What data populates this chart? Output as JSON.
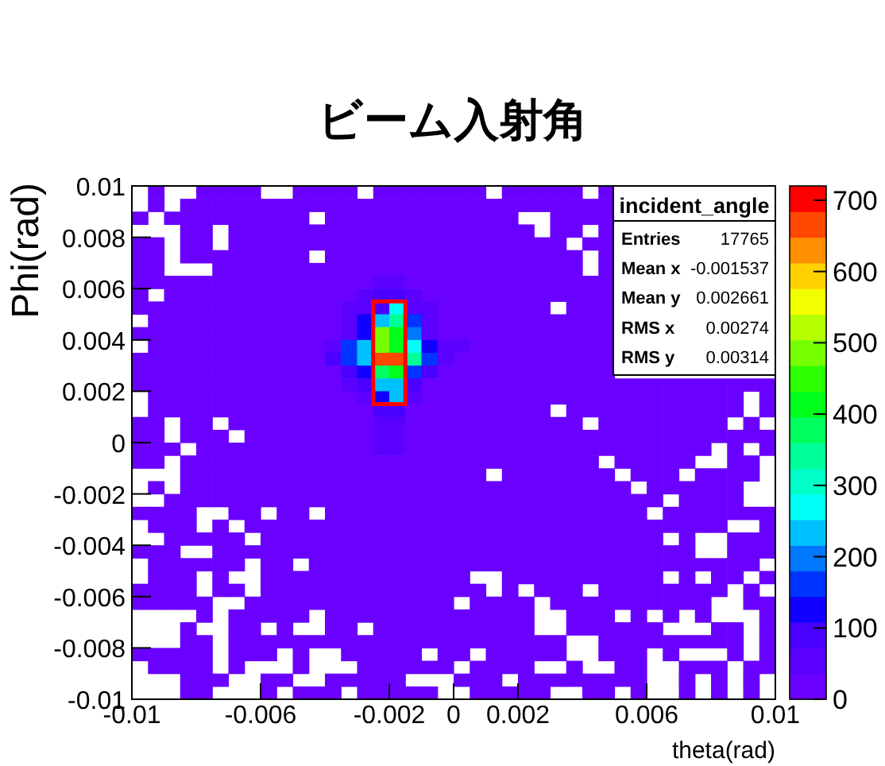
{
  "chart_data": {
    "type": "heatmap",
    "title": "ビーム入射角",
    "xlabel": "theta(rad)",
    "ylabel": "Phi(rad)",
    "annotations": [
      "incident_angle",
      "Entries",
      "17765",
      "Mean x",
      "-0.001537",
      "Mean y",
      "0.002661",
      "RMS x",
      "0.00274",
      "RMS y",
      "0.00314"
    ],
    "xlim": [
      -0.01,
      0.01
    ],
    "ylim": [
      -0.01,
      0.01
    ],
    "xticks": [
      -0.01,
      -0.006,
      -0.002,
      0,
      0.002,
      0.006,
      0.01
    ],
    "yticks": [
      -0.01,
      -0.008,
      -0.006,
      -0.004,
      -0.002,
      0,
      0.002,
      0.004,
      0.006,
      0.008,
      0.01
    ],
    "clim": [
      0,
      720
    ],
    "cticks": [
      0,
      100,
      200,
      300,
      400,
      500,
      600,
      700
    ],
    "cells": [
      [
        null,
        10,
        null,
        null,
        10,
        10,
        10,
        10,
        null,
        null,
        10,
        10,
        10,
        10,
        null,
        10,
        10,
        10,
        10,
        10,
        10,
        10,
        null,
        10,
        10,
        10,
        10,
        10,
        null,
        10,
        null,
        null,
        null,
        null,
        null,
        null,
        null,
        null,
        null,
        null
      ],
      [
        null,
        10,
        null,
        10,
        10,
        10,
        10,
        10,
        10,
        10,
        10,
        10,
        10,
        10,
        10,
        10,
        10,
        10,
        10,
        10,
        10,
        10,
        10,
        10,
        10,
        10,
        10,
        10,
        10,
        10,
        null,
        null,
        null,
        null,
        null,
        null,
        null,
        null,
        null,
        null
      ],
      [
        10,
        null,
        10,
        10,
        10,
        10,
        10,
        10,
        10,
        10,
        10,
        null,
        10,
        10,
        10,
        10,
        10,
        10,
        10,
        10,
        10,
        10,
        10,
        10,
        null,
        null,
        10,
        10,
        10,
        10,
        null,
        null,
        null,
        null,
        null,
        null,
        null,
        null,
        null,
        null
      ],
      [
        null,
        null,
        null,
        10,
        10,
        null,
        10,
        10,
        10,
        10,
        10,
        10,
        10,
        10,
        10,
        10,
        10,
        10,
        10,
        10,
        10,
        10,
        10,
        10,
        10,
        null,
        10,
        10,
        null,
        10,
        null,
        null,
        null,
        null,
        null,
        null,
        null,
        null,
        null,
        null
      ],
      [
        10,
        10,
        null,
        10,
        10,
        null,
        10,
        10,
        10,
        10,
        10,
        10,
        10,
        10,
        10,
        10,
        10,
        10,
        10,
        10,
        10,
        10,
        10,
        10,
        10,
        10,
        10,
        null,
        10,
        10,
        null,
        null,
        null,
        null,
        null,
        null,
        null,
        null,
        null,
        null
      ],
      [
        10,
        10,
        null,
        10,
        10,
        10,
        10,
        10,
        10,
        10,
        10,
        null,
        10,
        10,
        10,
        10,
        10,
        10,
        10,
        10,
        10,
        10,
        10,
        10,
        10,
        10,
        10,
        10,
        null,
        10,
        null,
        null,
        null,
        null,
        null,
        null,
        null,
        null,
        null,
        null
      ],
      [
        10,
        10,
        null,
        null,
        null,
        10,
        10,
        10,
        10,
        10,
        10,
        10,
        10,
        10,
        10,
        10,
        10,
        10,
        10,
        10,
        10,
        10,
        10,
        10,
        10,
        10,
        10,
        10,
        null,
        10,
        null,
        null,
        null,
        null,
        null,
        null,
        null,
        null,
        null,
        null
      ],
      [
        10,
        10,
        10,
        10,
        10,
        10,
        10,
        10,
        10,
        10,
        10,
        10,
        10,
        10,
        10,
        60,
        60,
        10,
        10,
        10,
        10,
        10,
        10,
        10,
        10,
        10,
        10,
        10,
        10,
        10,
        null,
        null,
        null,
        null,
        null,
        null,
        null,
        null,
        null,
        null
      ],
      [
        10,
        null,
        10,
        10,
        10,
        10,
        10,
        10,
        10,
        10,
        10,
        10,
        10,
        10,
        40,
        80,
        80,
        40,
        10,
        10,
        10,
        10,
        10,
        10,
        10,
        10,
        10,
        10,
        10,
        10,
        null,
        null,
        null,
        null,
        null,
        null,
        null,
        null,
        null,
        null
      ],
      [
        10,
        10,
        10,
        10,
        10,
        10,
        10,
        10,
        10,
        10,
        10,
        10,
        10,
        60,
        60,
        100,
        270,
        60,
        60,
        10,
        10,
        10,
        10,
        10,
        10,
        10,
        null,
        10,
        10,
        10,
        null,
        null,
        null,
        null,
        null,
        null,
        null,
        null,
        null,
        null
      ],
      [
        null,
        10,
        10,
        10,
        10,
        10,
        10,
        10,
        10,
        10,
        10,
        10,
        10,
        60,
        120,
        250,
        350,
        150,
        60,
        10,
        10,
        10,
        10,
        10,
        10,
        10,
        10,
        10,
        10,
        10,
        null,
        null,
        null,
        null,
        null,
        null,
        null,
        null,
        null,
        null
      ],
      [
        10,
        10,
        10,
        10,
        10,
        10,
        10,
        10,
        10,
        10,
        10,
        10,
        10,
        70,
        140,
        480,
        400,
        180,
        70,
        10,
        10,
        10,
        10,
        10,
        10,
        10,
        10,
        10,
        10,
        10,
        null,
        null,
        null,
        null,
        null,
        null,
        null,
        null,
        null,
        null
      ],
      [
        null,
        10,
        10,
        10,
        10,
        10,
        10,
        10,
        10,
        10,
        10,
        10,
        60,
        150,
        230,
        500,
        430,
        260,
        140,
        40,
        50,
        10,
        10,
        10,
        10,
        10,
        10,
        10,
        10,
        10,
        null,
        null,
        null,
        null,
        null,
        null,
        null,
        null,
        null,
        null
      ],
      [
        10,
        10,
        10,
        10,
        10,
        10,
        10,
        10,
        10,
        10,
        10,
        10,
        80,
        150,
        220,
        680,
        650,
        340,
        150,
        60,
        10,
        10,
        10,
        10,
        10,
        10,
        10,
        10,
        10,
        10,
        null,
        null,
        null,
        null,
        null,
        null,
        null,
        null,
        null,
        null
      ],
      [
        10,
        10,
        10,
        10,
        10,
        10,
        10,
        10,
        10,
        10,
        10,
        10,
        10,
        100,
        130,
        380,
        400,
        150,
        100,
        10,
        10,
        10,
        10,
        10,
        10,
        10,
        10,
        10,
        10,
        10,
        null,
        null,
        null,
        null,
        null,
        null,
        null,
        null,
        null,
        null
      ],
      [
        10,
        10,
        10,
        10,
        10,
        10,
        10,
        10,
        10,
        10,
        10,
        10,
        10,
        60,
        100,
        250,
        230,
        100,
        10,
        10,
        10,
        10,
        10,
        10,
        10,
        10,
        10,
        10,
        10,
        10,
        10,
        10,
        10,
        10,
        10,
        10,
        10,
        10,
        10,
        10
      ],
      [
        null,
        10,
        10,
        10,
        10,
        10,
        10,
        10,
        10,
        10,
        10,
        10,
        10,
        10,
        60,
        120,
        220,
        60,
        10,
        10,
        10,
        10,
        10,
        10,
        10,
        10,
        10,
        10,
        10,
        10,
        10,
        10,
        10,
        10,
        10,
        10,
        10,
        10,
        null,
        10
      ],
      [
        null,
        10,
        10,
        10,
        10,
        10,
        10,
        10,
        10,
        10,
        10,
        10,
        10,
        10,
        10,
        80,
        80,
        10,
        10,
        10,
        10,
        10,
        10,
        10,
        10,
        10,
        null,
        10,
        10,
        10,
        10,
        10,
        10,
        10,
        10,
        10,
        10,
        10,
        null,
        10
      ],
      [
        10,
        10,
        null,
        10,
        10,
        null,
        10,
        10,
        10,
        10,
        10,
        10,
        10,
        10,
        10,
        50,
        50,
        10,
        10,
        10,
        10,
        10,
        10,
        10,
        10,
        10,
        10,
        10,
        null,
        10,
        10,
        10,
        10,
        10,
        10,
        10,
        10,
        null,
        10,
        null
      ],
      [
        10,
        10,
        null,
        10,
        10,
        10,
        null,
        10,
        10,
        10,
        10,
        10,
        10,
        10,
        10,
        50,
        50,
        10,
        10,
        10,
        10,
        10,
        10,
        10,
        10,
        10,
        10,
        10,
        10,
        10,
        10,
        10,
        10,
        10,
        10,
        10,
        10,
        10,
        10,
        10
      ],
      [
        10,
        10,
        10,
        null,
        10,
        10,
        10,
        10,
        10,
        10,
        10,
        10,
        10,
        10,
        10,
        45,
        45,
        10,
        10,
        10,
        10,
        10,
        10,
        10,
        10,
        10,
        10,
        10,
        10,
        10,
        10,
        10,
        10,
        10,
        10,
        10,
        null,
        10,
        null,
        10
      ],
      [
        10,
        10,
        null,
        10,
        10,
        10,
        10,
        10,
        10,
        10,
        10,
        10,
        10,
        10,
        10,
        10,
        10,
        10,
        10,
        10,
        10,
        10,
        10,
        10,
        10,
        10,
        10,
        10,
        10,
        null,
        10,
        10,
        10,
        10,
        10,
        null,
        null,
        10,
        10,
        null
      ],
      [
        null,
        null,
        null,
        10,
        10,
        10,
        10,
        10,
        10,
        10,
        10,
        10,
        10,
        10,
        10,
        10,
        10,
        10,
        10,
        10,
        10,
        10,
        null,
        10,
        10,
        10,
        10,
        10,
        10,
        10,
        null,
        10,
        10,
        10,
        null,
        10,
        10,
        10,
        10,
        null
      ],
      [
        null,
        10,
        null,
        10,
        10,
        10,
        10,
        10,
        10,
        10,
        10,
        10,
        10,
        10,
        10,
        10,
        10,
        10,
        10,
        10,
        10,
        10,
        10,
        10,
        10,
        10,
        10,
        10,
        10,
        10,
        10,
        null,
        10,
        10,
        10,
        10,
        10,
        10,
        null,
        null
      ],
      [
        null,
        null,
        10,
        10,
        10,
        10,
        10,
        10,
        10,
        10,
        10,
        10,
        10,
        10,
        10,
        10,
        10,
        10,
        10,
        10,
        10,
        10,
        10,
        10,
        10,
        10,
        10,
        10,
        10,
        10,
        10,
        10,
        10,
        null,
        10,
        10,
        10,
        10,
        null,
        null
      ],
      [
        10,
        10,
        10,
        10,
        null,
        null,
        10,
        10,
        null,
        10,
        10,
        null,
        10,
        10,
        10,
        10,
        10,
        10,
        10,
        10,
        10,
        10,
        10,
        10,
        10,
        10,
        10,
        10,
        10,
        10,
        10,
        10,
        null,
        10,
        10,
        10,
        10,
        10,
        10,
        10
      ],
      [
        null,
        10,
        10,
        10,
        null,
        10,
        null,
        10,
        10,
        10,
        10,
        10,
        10,
        10,
        10,
        10,
        10,
        10,
        10,
        10,
        10,
        10,
        10,
        10,
        10,
        10,
        10,
        10,
        10,
        10,
        10,
        10,
        10,
        10,
        10,
        10,
        10,
        null,
        null,
        10
      ],
      [
        null,
        null,
        10,
        10,
        10,
        10,
        10,
        null,
        10,
        10,
        10,
        10,
        10,
        10,
        10,
        10,
        10,
        10,
        10,
        10,
        10,
        10,
        10,
        10,
        10,
        10,
        10,
        10,
        10,
        10,
        10,
        10,
        10,
        null,
        10,
        null,
        null,
        10,
        10,
        10
      ],
      [
        10,
        10,
        10,
        null,
        null,
        10,
        10,
        10,
        10,
        10,
        10,
        10,
        10,
        10,
        10,
        10,
        10,
        10,
        10,
        10,
        10,
        10,
        10,
        10,
        10,
        10,
        10,
        10,
        10,
        10,
        10,
        10,
        10,
        10,
        10,
        null,
        null,
        10,
        10,
        10
      ],
      [
        null,
        10,
        10,
        10,
        10,
        10,
        10,
        null,
        10,
        10,
        null,
        10,
        10,
        10,
        10,
        10,
        10,
        10,
        10,
        10,
        10,
        10,
        10,
        10,
        10,
        10,
        10,
        10,
        10,
        10,
        10,
        10,
        10,
        10,
        10,
        10,
        10,
        10,
        10,
        null
      ],
      [
        null,
        10,
        10,
        10,
        null,
        10,
        null,
        null,
        10,
        10,
        10,
        10,
        10,
        10,
        10,
        10,
        10,
        10,
        10,
        10,
        10,
        null,
        null,
        10,
        10,
        10,
        10,
        10,
        10,
        10,
        10,
        10,
        10,
        null,
        10,
        null,
        10,
        10,
        null,
        10
      ],
      [
        10,
        10,
        10,
        10,
        null,
        10,
        10,
        null,
        10,
        10,
        10,
        10,
        10,
        10,
        10,
        10,
        10,
        10,
        10,
        10,
        10,
        10,
        null,
        10,
        null,
        10,
        10,
        10,
        null,
        10,
        10,
        10,
        10,
        10,
        10,
        10,
        10,
        null,
        10,
        null
      ],
      [
        10,
        10,
        10,
        10,
        10,
        null,
        null,
        10,
        10,
        10,
        10,
        10,
        10,
        10,
        10,
        10,
        10,
        10,
        10,
        10,
        null,
        10,
        10,
        10,
        10,
        null,
        10,
        10,
        10,
        10,
        10,
        10,
        10,
        10,
        10,
        10,
        null,
        null,
        10,
        10
      ],
      [
        null,
        null,
        null,
        null,
        10,
        null,
        10,
        10,
        10,
        10,
        10,
        null,
        10,
        10,
        10,
        10,
        10,
        10,
        10,
        10,
        10,
        10,
        10,
        10,
        10,
        null,
        null,
        10,
        10,
        10,
        null,
        10,
        null,
        10,
        null,
        10,
        null,
        null,
        null,
        10
      ],
      [
        null,
        null,
        null,
        10,
        null,
        null,
        10,
        10,
        null,
        10,
        null,
        null,
        10,
        10,
        null,
        10,
        10,
        10,
        10,
        10,
        10,
        10,
        10,
        10,
        10,
        null,
        null,
        10,
        10,
        10,
        10,
        10,
        10,
        null,
        null,
        null,
        10,
        10,
        null,
        10
      ],
      [
        null,
        null,
        null,
        10,
        10,
        null,
        10,
        10,
        10,
        10,
        10,
        10,
        10,
        10,
        10,
        10,
        10,
        10,
        10,
        10,
        10,
        10,
        10,
        10,
        10,
        10,
        10,
        null,
        null,
        10,
        10,
        10,
        10,
        10,
        10,
        10,
        10,
        10,
        null,
        10
      ],
      [
        10,
        10,
        10,
        10,
        10,
        null,
        10,
        10,
        10,
        null,
        10,
        null,
        null,
        10,
        10,
        10,
        10,
        10,
        null,
        10,
        10,
        null,
        10,
        10,
        10,
        10,
        10,
        null,
        null,
        10,
        10,
        10,
        null,
        10,
        null,
        null,
        null,
        10,
        null,
        10
      ],
      [
        null,
        10,
        10,
        10,
        10,
        null,
        10,
        null,
        null,
        null,
        10,
        null,
        null,
        null,
        10,
        10,
        10,
        10,
        10,
        10,
        null,
        10,
        10,
        10,
        10,
        null,
        null,
        10,
        null,
        null,
        10,
        10,
        null,
        null,
        10,
        10,
        10,
        null,
        10,
        10
      ],
      [
        null,
        null,
        null,
        10,
        10,
        10,
        null,
        null,
        10,
        10,
        null,
        null,
        10,
        10,
        10,
        10,
        10,
        null,
        null,
        null,
        10,
        10,
        10,
        null,
        10,
        10,
        10,
        10,
        10,
        10,
        10,
        10,
        null,
        null,
        10,
        null,
        10,
        null,
        10,
        null
      ],
      [
        null,
        null,
        null,
        10,
        10,
        null,
        null,
        null,
        10,
        null,
        10,
        10,
        10,
        null,
        10,
        10,
        10,
        10,
        10,
        null,
        null,
        10,
        10,
        10,
        10,
        10,
        null,
        null,
        10,
        10,
        null,
        10,
        null,
        null,
        10,
        null,
        10,
        null,
        10,
        null
      ]
    ]
  }
}
